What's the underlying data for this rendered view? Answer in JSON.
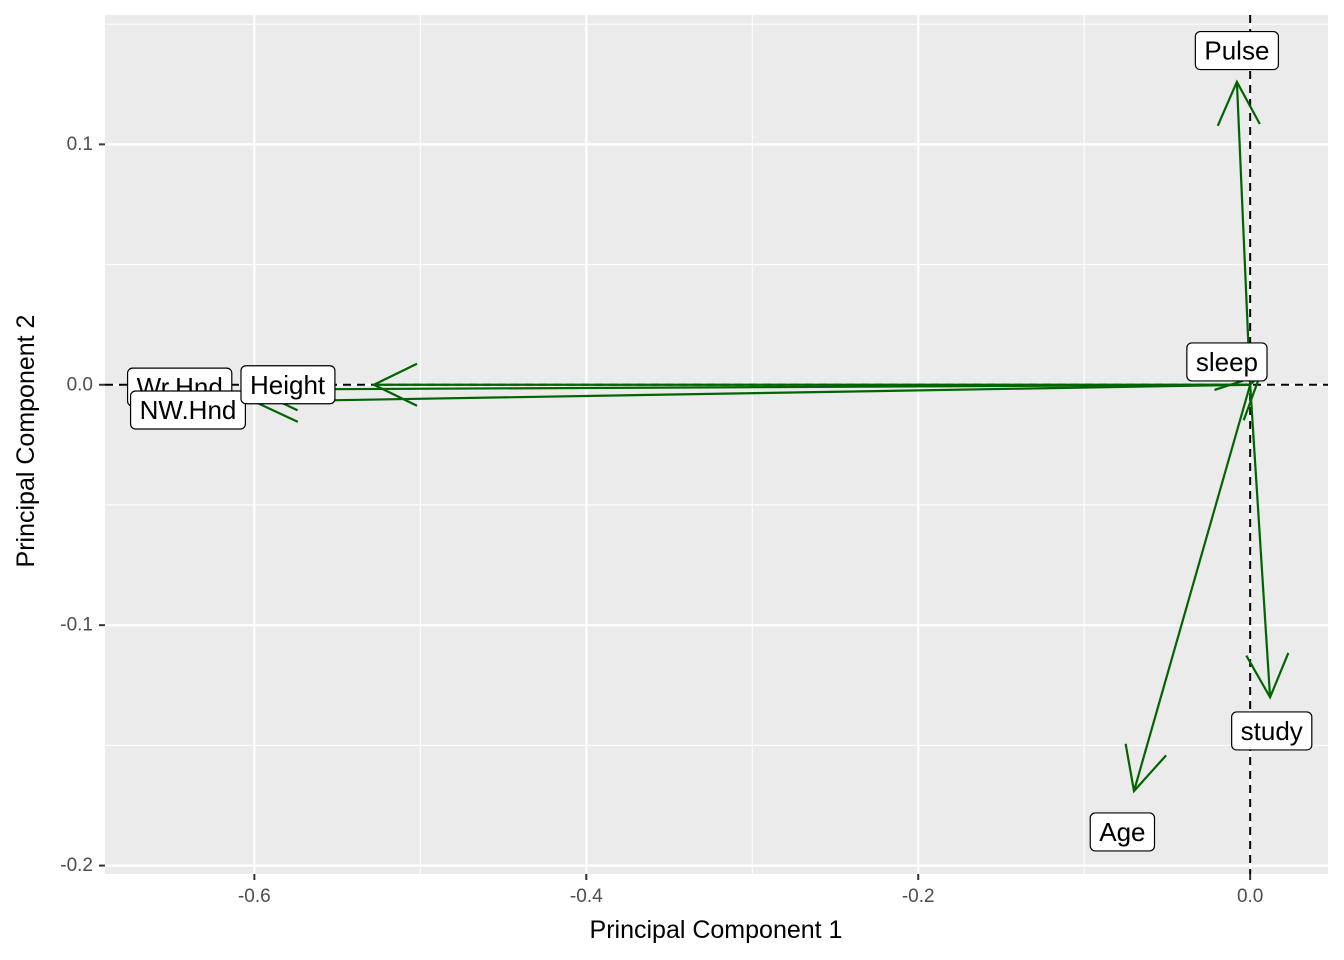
{
  "chart_data": {
    "type": "scatter",
    "subtype": "pca-loadings-biplot",
    "title": "",
    "xlabel": "Principal Component 1",
    "ylabel": "Principal Component 2",
    "xlim": [
      -0.69,
      0.0469
    ],
    "ylim": [
      -0.2035,
      0.1538
    ],
    "x_ticks": [
      -0.6,
      -0.4,
      -0.2,
      0.0
    ],
    "x_tick_labels": [
      "-0.6",
      "-0.4",
      "-0.2",
      "0.0"
    ],
    "y_ticks": [
      -0.2,
      -0.1,
      0.0,
      0.1
    ],
    "y_tick_labels": [
      "-0.2",
      "-0.1",
      "0.0",
      "0.1"
    ],
    "grid": true,
    "reference_lines": {
      "x": 0,
      "y": 0,
      "style": "dashed"
    },
    "arrow_origin": [
      0,
      0
    ],
    "arrows": [
      {
        "name": "Pulse",
        "x": -0.008,
        "y": 0.126
      },
      {
        "name": "sleep",
        "x": 0.006,
        "y": 0.004
      },
      {
        "name": "Height",
        "x": -0.528,
        "y": 0.0
      },
      {
        "name": "NW.Hnd",
        "x": -0.6,
        "y": -0.007
      },
      {
        "name": "Wr.Hnd",
        "x": -0.6,
        "y": -0.002
      },
      {
        "name": "study",
        "x": 0.012,
        "y": -0.13
      },
      {
        "name": "Age",
        "x": -0.07,
        "y": -0.169
      }
    ],
    "labels": [
      {
        "text": "Wr.Hnd",
        "x": -0.645,
        "y": -0.001
      },
      {
        "text": "NW.Hnd",
        "x": -0.64,
        "y": -0.0105
      },
      {
        "text": "Height",
        "x": -0.58,
        "y": 0.0
      },
      {
        "text": "Pulse",
        "x": -0.008,
        "y": 0.139
      },
      {
        "text": "sleep",
        "x": -0.014,
        "y": 0.0095
      },
      {
        "text": "study",
        "x": 0.013,
        "y": -0.144
      },
      {
        "text": "Age",
        "x": -0.077,
        "y": -0.186
      }
    ],
    "colors": {
      "arrow": "#006400",
      "panel_background": "#ebebeb",
      "grid_major": "#ffffff",
      "reference_line": "#000000"
    }
  }
}
